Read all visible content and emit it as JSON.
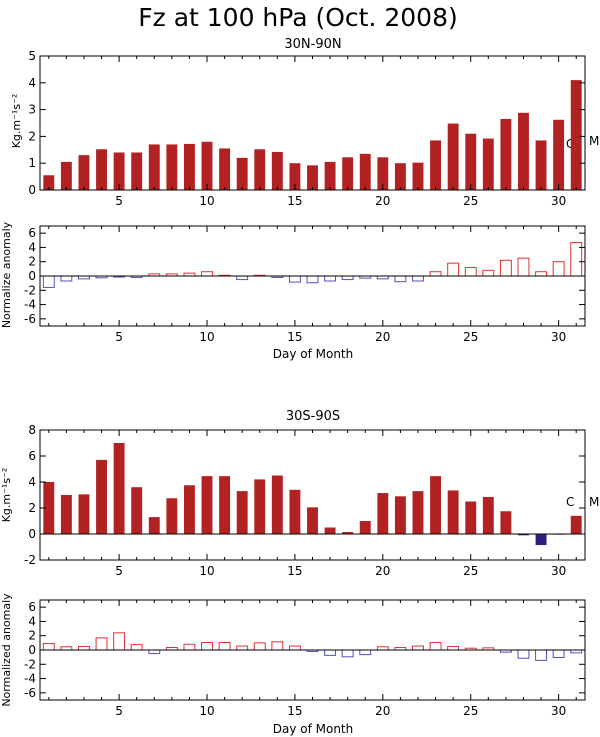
{
  "title": "Fz at 100 hPa (Oct. 2008)",
  "colors": {
    "positive_fill": "#b22222",
    "negative_fill": "#2b1f80",
    "anomaly_pos": "#e03030",
    "anomaly_neg": "#5050c0"
  },
  "chart_data": [
    {
      "type": "bar",
      "title": "30N-90N",
      "ylabel": "Kg.m⁻¹s⁻²",
      "xlabel": "",
      "ylim": [
        0,
        5
      ],
      "yticks": [
        0,
        1,
        2,
        3,
        4,
        5
      ],
      "xlim": [
        0.5,
        31.5
      ],
      "xticks": [
        5,
        10,
        15,
        20,
        25,
        30
      ],
      "annotations": [
        "C",
        "M"
      ],
      "x": [
        1,
        2,
        3,
        4,
        5,
        6,
        7,
        8,
        9,
        10,
        11,
        12,
        13,
        14,
        15,
        16,
        17,
        18,
        19,
        20,
        21,
        22,
        23,
        24,
        25,
        26,
        27,
        28,
        29,
        30,
        31
      ],
      "values": [
        0.55,
        1.05,
        1.3,
        1.52,
        1.4,
        1.4,
        1.7,
        1.7,
        1.72,
        1.8,
        1.55,
        1.2,
        1.52,
        1.42,
        1.0,
        0.92,
        1.05,
        1.22,
        1.35,
        1.22,
        1.0,
        1.02,
        1.85,
        2.48,
        2.1,
        1.92,
        2.65,
        2.88,
        1.85,
        2.62,
        4.1
      ]
    },
    {
      "type": "bar",
      "title": "",
      "ylabel": "Normalize anomaly",
      "xlabel": "Day of Month",
      "ylim": [
        -7,
        7
      ],
      "yticks": [
        -6,
        -4,
        -2,
        0,
        2,
        4,
        6
      ],
      "xlim": [
        0.5,
        31.5
      ],
      "xticks": [
        5,
        10,
        15,
        20,
        25,
        30
      ],
      "x": [
        1,
        2,
        3,
        4,
        5,
        6,
        7,
        8,
        9,
        10,
        11,
        12,
        13,
        14,
        15,
        16,
        17,
        18,
        19,
        20,
        21,
        22,
        23,
        24,
        25,
        26,
        27,
        28,
        29,
        30,
        31
      ],
      "values": [
        -1.6,
        -0.7,
        -0.4,
        -0.25,
        -0.15,
        -0.2,
        0.3,
        0.3,
        0.4,
        0.6,
        0.1,
        -0.5,
        0.1,
        -0.2,
        -0.85,
        -0.95,
        -0.7,
        -0.5,
        -0.3,
        -0.4,
        -0.8,
        -0.7,
        0.6,
        1.8,
        1.2,
        0.8,
        2.2,
        2.5,
        0.6,
        2.0,
        4.7
      ]
    },
    {
      "type": "bar",
      "title": "30S-90S",
      "ylabel": "Kg.m⁻¹s⁻²",
      "xlabel": "",
      "ylim": [
        -2,
        8
      ],
      "yticks": [
        -2,
        0,
        2,
        4,
        6,
        8
      ],
      "xlim": [
        0.5,
        31.5
      ],
      "xticks": [
        5,
        10,
        15,
        20,
        25,
        30
      ],
      "annotations": [
        "C",
        "M"
      ],
      "x": [
        1,
        2,
        3,
        4,
        5,
        6,
        7,
        8,
        9,
        10,
        11,
        12,
        13,
        14,
        15,
        16,
        17,
        18,
        19,
        20,
        21,
        22,
        23,
        24,
        25,
        26,
        27,
        28,
        29,
        30,
        31
      ],
      "values": [
        4.0,
        3.0,
        3.05,
        5.7,
        7.0,
        3.6,
        1.3,
        2.75,
        3.75,
        4.45,
        4.45,
        3.3,
        4.2,
        4.5,
        3.4,
        2.05,
        0.5,
        0.15,
        1.0,
        3.15,
        2.9,
        3.3,
        4.45,
        3.35,
        2.5,
        2.85,
        1.75,
        -0.1,
        -0.85,
        -0.05,
        1.4
      ]
    },
    {
      "type": "bar",
      "title": "",
      "ylabel": "Normalized anomaly",
      "xlabel": "Day of Month",
      "ylim": [
        -7,
        7
      ],
      "yticks": [
        -6,
        -4,
        -2,
        0,
        2,
        4,
        6
      ],
      "xlim": [
        0.5,
        31.5
      ],
      "xticks": [
        5,
        10,
        15,
        20,
        25,
        30
      ],
      "x": [
        1,
        2,
        3,
        4,
        5,
        6,
        7,
        8,
        9,
        10,
        11,
        12,
        13,
        14,
        15,
        16,
        17,
        18,
        19,
        20,
        21,
        22,
        23,
        24,
        25,
        26,
        27,
        28,
        29,
        30,
        31
      ],
      "values": [
        0.9,
        0.45,
        0.5,
        1.7,
        2.4,
        0.75,
        -0.5,
        0.35,
        0.8,
        1.05,
        1.05,
        0.55,
        1.0,
        1.15,
        0.55,
        -0.2,
        -0.75,
        -0.95,
        -0.65,
        0.45,
        0.35,
        0.55,
        1.05,
        0.5,
        0.25,
        0.3,
        -0.3,
        -1.15,
        -1.45,
        -1.05,
        -0.4
      ]
    }
  ]
}
